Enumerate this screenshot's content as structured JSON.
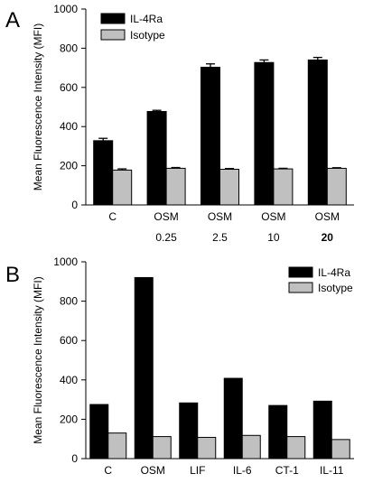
{
  "colors": {
    "il4ra": "#000000",
    "isotype": "#c0c0c0",
    "axis": "#000000"
  },
  "chart_data": [
    {
      "type": "bar",
      "panel": "A",
      "ylabel": "Mean Fluorescence Intensity (MFI)",
      "ylim": [
        0,
        1000
      ],
      "yticks": [
        "0",
        "200",
        "400",
        "600",
        "800",
        "1000"
      ],
      "categories": [
        [
          "C",
          ""
        ],
        [
          "OSM",
          "0.25"
        ],
        [
          "OSM",
          "2.5"
        ],
        [
          "OSM",
          "10"
        ],
        [
          "OSM",
          "20"
        ]
      ],
      "series": [
        {
          "name": "IL-4Ra",
          "values": [
            328,
            477,
            703,
            727,
            740
          ],
          "errors": [
            12,
            6,
            17,
            13,
            13
          ]
        },
        {
          "name": "Isotype",
          "values": [
            178,
            187,
            182,
            184,
            187
          ],
          "errors": [
            6,
            4,
            4,
            3,
            3
          ]
        }
      ],
      "legend": "top-left",
      "grid": false
    },
    {
      "type": "bar",
      "panel": "B",
      "ylabel": "Mean Fluorescence Intensity (MFI)",
      "ylim": [
        0,
        1000
      ],
      "yticks": [
        "0",
        "200",
        "400",
        "600",
        "800",
        "1000"
      ],
      "categories": [
        [
          "C"
        ],
        [
          "OSM"
        ],
        [
          "LIF"
        ],
        [
          "IL-6"
        ],
        [
          "CT-1"
        ],
        [
          "IL-11"
        ]
      ],
      "series": [
        {
          "name": "IL-4Ra",
          "values": [
            275,
            920,
            283,
            408,
            270,
            292
          ]
        },
        {
          "name": "Isotype",
          "values": [
            130,
            112,
            108,
            118,
            112,
            97
          ]
        }
      ],
      "legend": "top-right",
      "grid": false
    }
  ]
}
